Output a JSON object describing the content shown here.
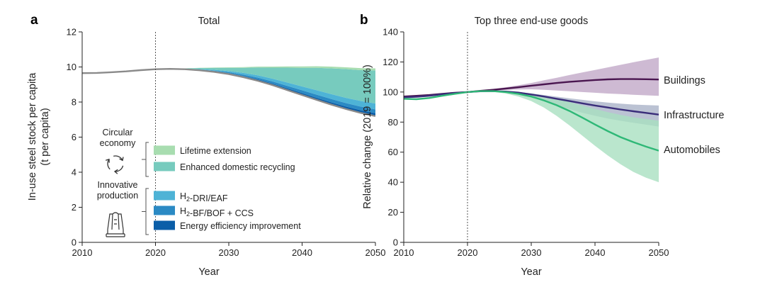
{
  "colors": {
    "lifetime_extension": "#a8ddb0",
    "enhanced_domestic_recycling": "#77cbbe",
    "h2_dri_eaf": "#4eb3d6",
    "h2_bf_bof_ccs": "#2b8ac4",
    "energy_efficiency": "#0b5ea8",
    "total_line": "#8a8a8a",
    "buildings": "#4a1650",
    "buildings_band": "#c2a9c8",
    "infrastructure": "#3a2d7a",
    "infrastructure_band": "#aab3c8",
    "automobiles": "#2fb877",
    "automobiles_band": "#a9e0c0"
  },
  "icons": {
    "circular_economy": "recycle-arrows-icon",
    "innovative_production": "factory-chimney-icon"
  },
  "chart_data": [
    {
      "panel": "a",
      "type": "area",
      "title": "Total",
      "xlabel": "Year",
      "ylabel": "In-use steel stock per capita\n(t per capita)",
      "xlim": [
        2010,
        2050
      ],
      "ylim": [
        0,
        12
      ],
      "xticks": [
        2010,
        2020,
        2030,
        2040,
        2050
      ],
      "yticks": [
        0,
        2,
        4,
        6,
        8,
        10,
        12
      ],
      "vline": 2020,
      "x": [
        2010,
        2012,
        2014,
        2016,
        2018,
        2020,
        2022,
        2024,
        2026,
        2028,
        2030,
        2032,
        2034,
        2036,
        2038,
        2040,
        2042,
        2044,
        2046,
        2048,
        2050
      ],
      "baseline": [
        9.65,
        9.66,
        9.7,
        9.75,
        9.82,
        9.87,
        9.89,
        9.87,
        9.81,
        9.72,
        9.59,
        9.42,
        9.21,
        8.96,
        8.68,
        8.4,
        8.12,
        7.85,
        7.6,
        7.38,
        7.2
      ],
      "series": [
        {
          "name": "Energy efficiency improvement",
          "values": [
            0,
            0,
            0,
            0,
            0,
            0,
            0,
            0.01,
            0.02,
            0.03,
            0.05,
            0.06,
            0.08,
            0.09,
            0.1,
            0.11,
            0.12,
            0.13,
            0.14,
            0.15,
            0.16
          ]
        },
        {
          "name": "H₂-BF/BOF + CCS",
          "values": [
            0,
            0,
            0,
            0,
            0,
            0,
            0,
            0.01,
            0.02,
            0.04,
            0.06,
            0.08,
            0.1,
            0.12,
            0.14,
            0.16,
            0.18,
            0.19,
            0.2,
            0.21,
            0.22
          ]
        },
        {
          "name": "H₂-DRI/EAF",
          "values": [
            0,
            0,
            0,
            0,
            0,
            0,
            0,
            0.01,
            0.03,
            0.05,
            0.07,
            0.1,
            0.13,
            0.16,
            0.19,
            0.22,
            0.25,
            0.28,
            0.3,
            0.32,
            0.34
          ]
        },
        {
          "name": "Enhanced domestic recycling",
          "values": [
            0,
            0,
            0,
            0,
            0,
            0,
            0,
            0.02,
            0.06,
            0.11,
            0.18,
            0.29,
            0.45,
            0.63,
            0.85,
            1.06,
            1.28,
            1.47,
            1.64,
            1.76,
            1.88
          ]
        },
        {
          "name": "Lifetime extension",
          "values": [
            0,
            0,
            0,
            0,
            0,
            0,
            0,
            0,
            0.01,
            0.02,
            0.03,
            0.04,
            0.05,
            0.06,
            0.07,
            0.08,
            0.09,
            0.1,
            0.1,
            0.11,
            0.12
          ]
        }
      ],
      "legend_groups": [
        {
          "label": "Circular\neconomy",
          "icon": "recycle-arrows-icon",
          "items": [
            "Lifetime extension",
            "Enhanced domestic recycling"
          ]
        },
        {
          "label": "Innovative\nproduction",
          "icon": "factory-chimney-icon",
          "items": [
            "H₂-DRI/EAF",
            "H₂-BF/BOF + CCS",
            "Energy efficiency improvement"
          ]
        }
      ]
    },
    {
      "panel": "b",
      "type": "line",
      "title": "Top three end-use goods",
      "xlabel": "Year",
      "ylabel": "Relative change (2019 = 100%)",
      "xlim": [
        2010,
        2050
      ],
      "ylim": [
        0,
        140
      ],
      "xticks": [
        2010,
        2020,
        2030,
        2040,
        2050
      ],
      "yticks": [
        0,
        20,
        40,
        60,
        80,
        100,
        120,
        140
      ],
      "vline": 2020,
      "x": [
        2010,
        2012,
        2014,
        2016,
        2018,
        2020,
        2022,
        2024,
        2026,
        2028,
        2030,
        2032,
        2034,
        2036,
        2038,
        2040,
        2042,
        2044,
        2046,
        2048,
        2050
      ],
      "series": [
        {
          "name": "Buildings",
          "values": [
            97,
            97.5,
            98,
            98.8,
            99.5,
            100,
            100.8,
            101.5,
            102.3,
            103.2,
            104.2,
            105.1,
            106,
            106.8,
            107.4,
            108,
            108.4,
            108.6,
            108.6,
            108.5,
            108.3
          ],
          "upper": [
            97,
            97.5,
            98,
            98.8,
            99.5,
            100,
            101,
            102,
            103.2,
            104.5,
            106,
            107.8,
            109.5,
            111.3,
            113,
            114.7,
            116.4,
            118.1,
            119.8,
            121.4,
            123
          ],
          "lower": [
            97,
            97.5,
            98,
            98.8,
            99.5,
            100,
            100.6,
            101,
            101.4,
            101.7,
            101.8,
            101.5,
            101,
            100.5,
            100,
            99.5,
            99,
            98.6,
            98.2,
            97.8,
            97.5
          ]
        },
        {
          "name": "Infrastructure",
          "values": [
            96.5,
            96.8,
            97.5,
            98.5,
            99.3,
            100,
            100.5,
            100.6,
            100.3,
            99.6,
            98.4,
            97,
            95.5,
            94,
            92.5,
            91,
            89.7,
            88.4,
            87.2,
            86.1,
            85
          ],
          "upper": [
            96.5,
            96.8,
            97.5,
            98.5,
            99.3,
            100,
            100.6,
            100.8,
            100.6,
            100,
            99.1,
            98,
            96.9,
            95.8,
            94.8,
            93.8,
            93,
            92.3,
            91.7,
            91.3,
            91
          ],
          "lower": [
            96.5,
            96.8,
            97.5,
            98.5,
            99.3,
            100,
            100.4,
            100.3,
            99.7,
            98.5,
            96.5,
            94,
            91.2,
            88.6,
            86.2,
            84.2,
            82.4,
            80.9,
            79.5,
            78.3,
            77
          ]
        },
        {
          "name": "Automobiles",
          "values": [
            95.5,
            95.2,
            96,
            97.5,
            98.8,
            100,
            100.6,
            100.6,
            100,
            98.8,
            97,
            94.4,
            91.2,
            87.4,
            83,
            78.4,
            74,
            70,
            66.7,
            63.7,
            61
          ],
          "upper": [
            95.5,
            95.2,
            96,
            97.5,
            98.8,
            100,
            100.8,
            101,
            100.7,
            100,
            99,
            97.6,
            95.7,
            93.4,
            91,
            88.7,
            86.6,
            84.8,
            83.2,
            82,
            81
          ],
          "lower": [
            95.5,
            95.2,
            96,
            97.5,
            98.8,
            100,
            100.4,
            100.1,
            99,
            97,
            94,
            89.6,
            84.1,
            77.8,
            71,
            64.2,
            57.8,
            52,
            46.9,
            43,
            40
          ]
        }
      ]
    }
  ]
}
